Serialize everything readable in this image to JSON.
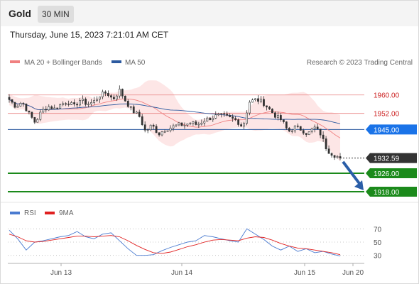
{
  "header": {
    "symbol": "Gold",
    "timeframe": "30 MIN"
  },
  "datetime": "Thursday, June 15, 2023 7:21:01 AM CET",
  "legend": {
    "ma20": "MA 20 + Bollinger Bands",
    "ma50": "MA 50",
    "copyright": "Research © 2023 Trading Central",
    "rsi": "RSI",
    "ma9": "9MA"
  },
  "colors": {
    "candle": "#333333",
    "ma20": "#f08080",
    "bollinger_fill": "#fde3e3",
    "ma50": "#2c5aa0",
    "resistance": "#e88080",
    "pivot_line": "#2c5aa0",
    "pivot_tag": "#1a73e8",
    "support": "#1b8a1b",
    "price_tag": "#333333",
    "arrow": "#2a5ea8",
    "rsi": "#4a7bd0",
    "rsi_ma": "#e02020"
  },
  "chart_data": [
    {
      "type": "candlestick",
      "title": "Gold",
      "xlabel": "",
      "ylabel": "",
      "ylim": [
        1914,
        1967
      ],
      "x_ticks": [
        "Jun 13",
        "Jun 14",
        "Jun 15",
        "Jun 20"
      ],
      "last_price": 1932.59,
      "levels": [
        {
          "value": 1960.0,
          "label": "1960.00",
          "kind": "resistance"
        },
        {
          "value": 1952.0,
          "label": "1952.00",
          "kind": "resistance"
        },
        {
          "value": 1945.0,
          "label": "1945.00",
          "kind": "pivot"
        },
        {
          "value": 1926.0,
          "label": "1926.00",
          "kind": "support"
        },
        {
          "value": 1918.0,
          "label": "1918.00",
          "kind": "support"
        }
      ],
      "close_path": [
        1958,
        1955,
        1957,
        1952,
        1948,
        1953,
        1955,
        1954,
        1956,
        1957,
        1955,
        1958,
        1956,
        1957,
        1960,
        1961,
        1958,
        1962,
        1957,
        1953,
        1951,
        1944,
        1947,
        1943,
        1945,
        1946,
        1947,
        1947,
        1948,
        1947,
        1949,
        1950,
        1951,
        1951,
        1950,
        1949,
        1946,
        1957,
        1958,
        1957,
        1954,
        1951,
        1949,
        1944,
        1946,
        1945,
        1943,
        1946,
        1943,
        1936,
        1934,
        1932.59
      ],
      "series": [
        {
          "name": "MA 20 + Bollinger Bands",
          "kind": "moving-average"
        },
        {
          "name": "MA 50",
          "kind": "moving-average"
        }
      ]
    },
    {
      "type": "line",
      "title": "RSI",
      "ylim": [
        20,
        80
      ],
      "y_ticks": [
        70,
        50,
        30
      ],
      "series": [
        {
          "name": "RSI",
          "values": [
            68,
            55,
            38,
            50,
            52,
            55,
            58,
            60,
            66,
            58,
            55,
            62,
            64,
            52,
            40,
            30,
            30,
            31,
            37,
            42,
            46,
            50,
            52,
            60,
            58,
            55,
            52,
            50,
            70,
            62,
            54,
            44,
            38,
            44,
            36,
            40,
            34,
            36,
            32,
            29
          ]
        },
        {
          "name": "9MA",
          "values": [
            62,
            58,
            52,
            50,
            51,
            53,
            55,
            57,
            59,
            59,
            58,
            59,
            60,
            58,
            52,
            45,
            39,
            34,
            33,
            35,
            39,
            43,
            46,
            50,
            53,
            54,
            53,
            52,
            56,
            58,
            57,
            53,
            48,
            44,
            41,
            40,
            38,
            36,
            34,
            31
          ]
        }
      ]
    }
  ]
}
